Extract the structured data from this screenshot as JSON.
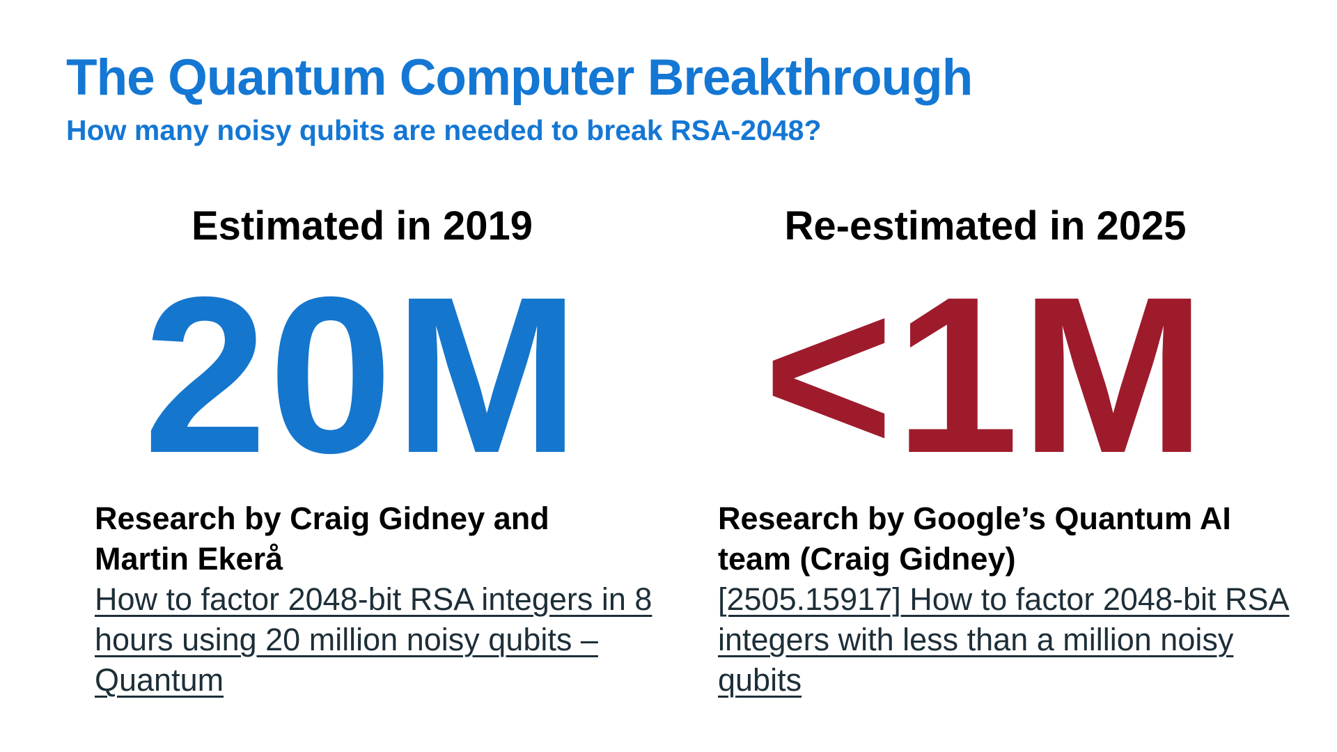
{
  "slide": {
    "title": "The Quantum Computer Breakthrough",
    "subtitle": "How many noisy qubits are needed to break RSA-2048?",
    "background_color": "#ffffff"
  },
  "colors": {
    "accent_blue": "#1477d3",
    "value_blue": "#1576cd",
    "value_dark_red": "#9e1b2c",
    "credit_black": "#000000",
    "link_slate": "#1d2e38"
  },
  "columns": [
    {
      "heading": "Estimated in 2019",
      "value": "20M",
      "value_color": "#1576cd",
      "credit_lines": [
        "Research by Craig Gidney and",
        "Martin Ekerå"
      ],
      "link_lines": [
        "How to factor 2048-bit RSA integers in 8",
        "hours using 20 million noisy qubits –",
        "Quantum"
      ]
    },
    {
      "heading": "Re-estimated in 2025",
      "value": "<1M",
      "value_color": "#9e1b2c",
      "credit_lines": [
        "Research by Google’s Quantum AI",
        "team (Craig Gidney)"
      ],
      "link_lines": [
        "[2505.15917] How to factor 2048-bit RSA",
        "integers with less than a million noisy",
        "qubits"
      ]
    }
  ]
}
